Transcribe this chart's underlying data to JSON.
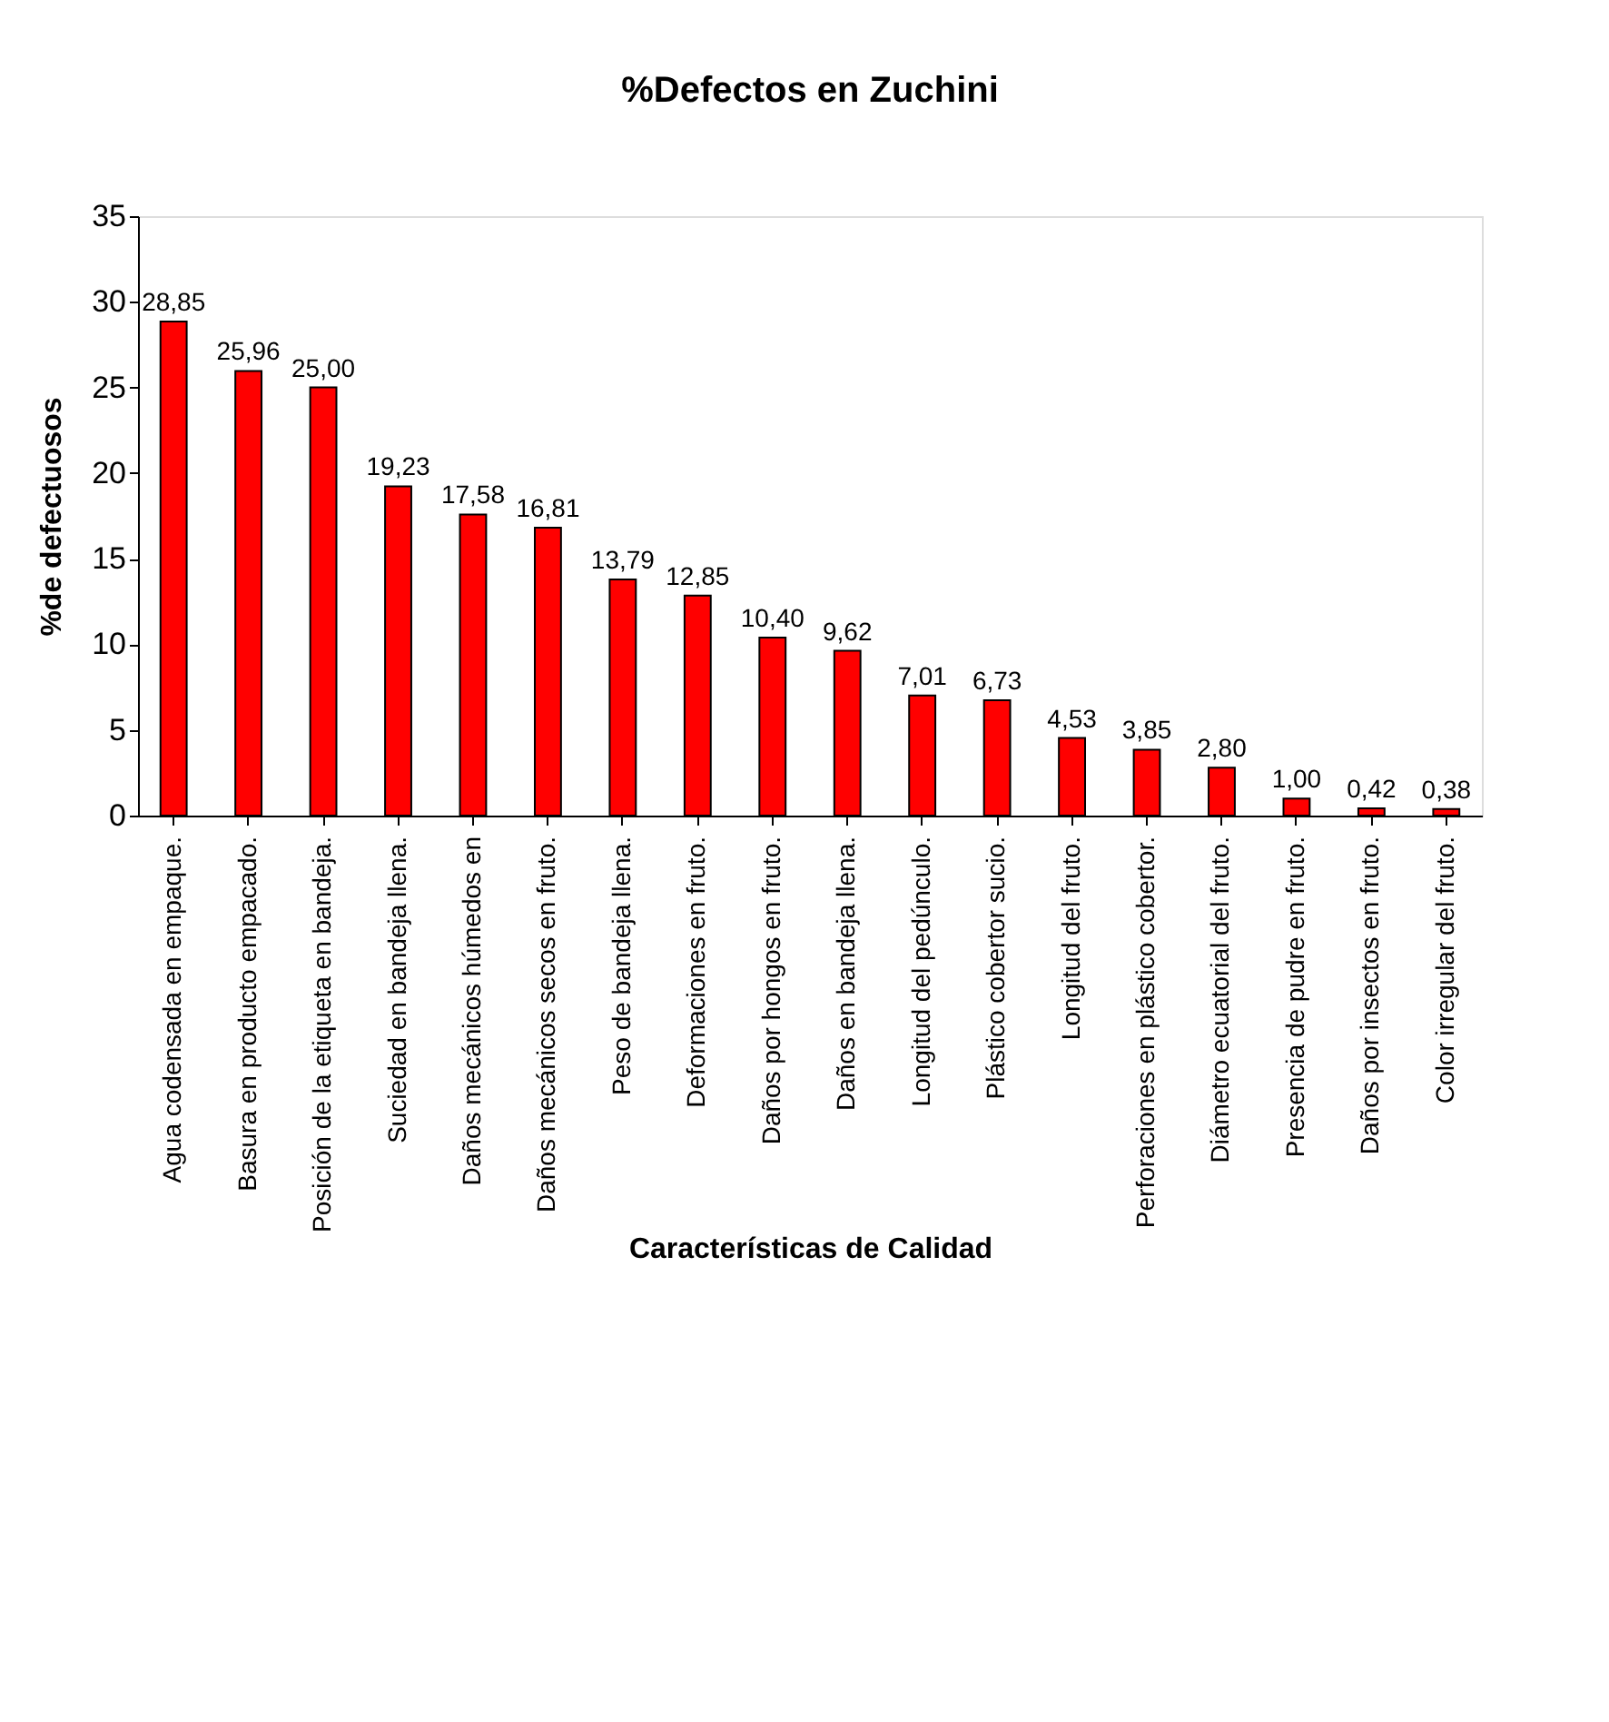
{
  "chart_data": {
    "type": "bar",
    "title": "%Defectos en Zuchini",
    "xlabel": "Características de Calidad",
    "ylabel": "%de defectuosos",
    "categories": [
      "Agua codensada en empaque.",
      "Basura en producto empacado.",
      "Posición de la etiqueta en bandeja.",
      "Suciedad en bandeja llena.",
      "Daños mecánicos húmedos en",
      "Daños mecánicos secos en fruto.",
      "Peso de bandeja llena.",
      "Deformaciones en fruto.",
      "Daños por hongos en fruto.",
      "Daños en bandeja llena.",
      "Longitud del pedúnculo.",
      "Plástico cobertor sucio.",
      "Longitud del fruto.",
      "Perforaciones en plástico cobertor.",
      "Diámetro ecuatorial del fruto.",
      "Presencia de pudre en fruto.",
      "Daños por insectos en fruto.",
      "Color irregular del fruto."
    ],
    "values": [
      28.85,
      25.96,
      25.0,
      19.23,
      17.58,
      16.81,
      13.79,
      12.85,
      10.4,
      9.62,
      7.01,
      6.73,
      4.53,
      3.85,
      2.8,
      1.0,
      0.42,
      0.38
    ],
    "value_labels": [
      "28,85",
      "25,96",
      "25,00",
      "19,23",
      "17,58",
      "16,81",
      "13,79",
      "12,85",
      "10,40",
      "9,62",
      "7,01",
      "6,73",
      "4,53",
      "3,85",
      "2,80",
      "1,00",
      "0,42",
      "0,38"
    ],
    "color": "#ff0000",
    "ylim": [
      0,
      35
    ],
    "yticks": [
      0,
      5,
      10,
      15,
      20,
      25,
      30,
      35
    ],
    "grid": false
  }
}
